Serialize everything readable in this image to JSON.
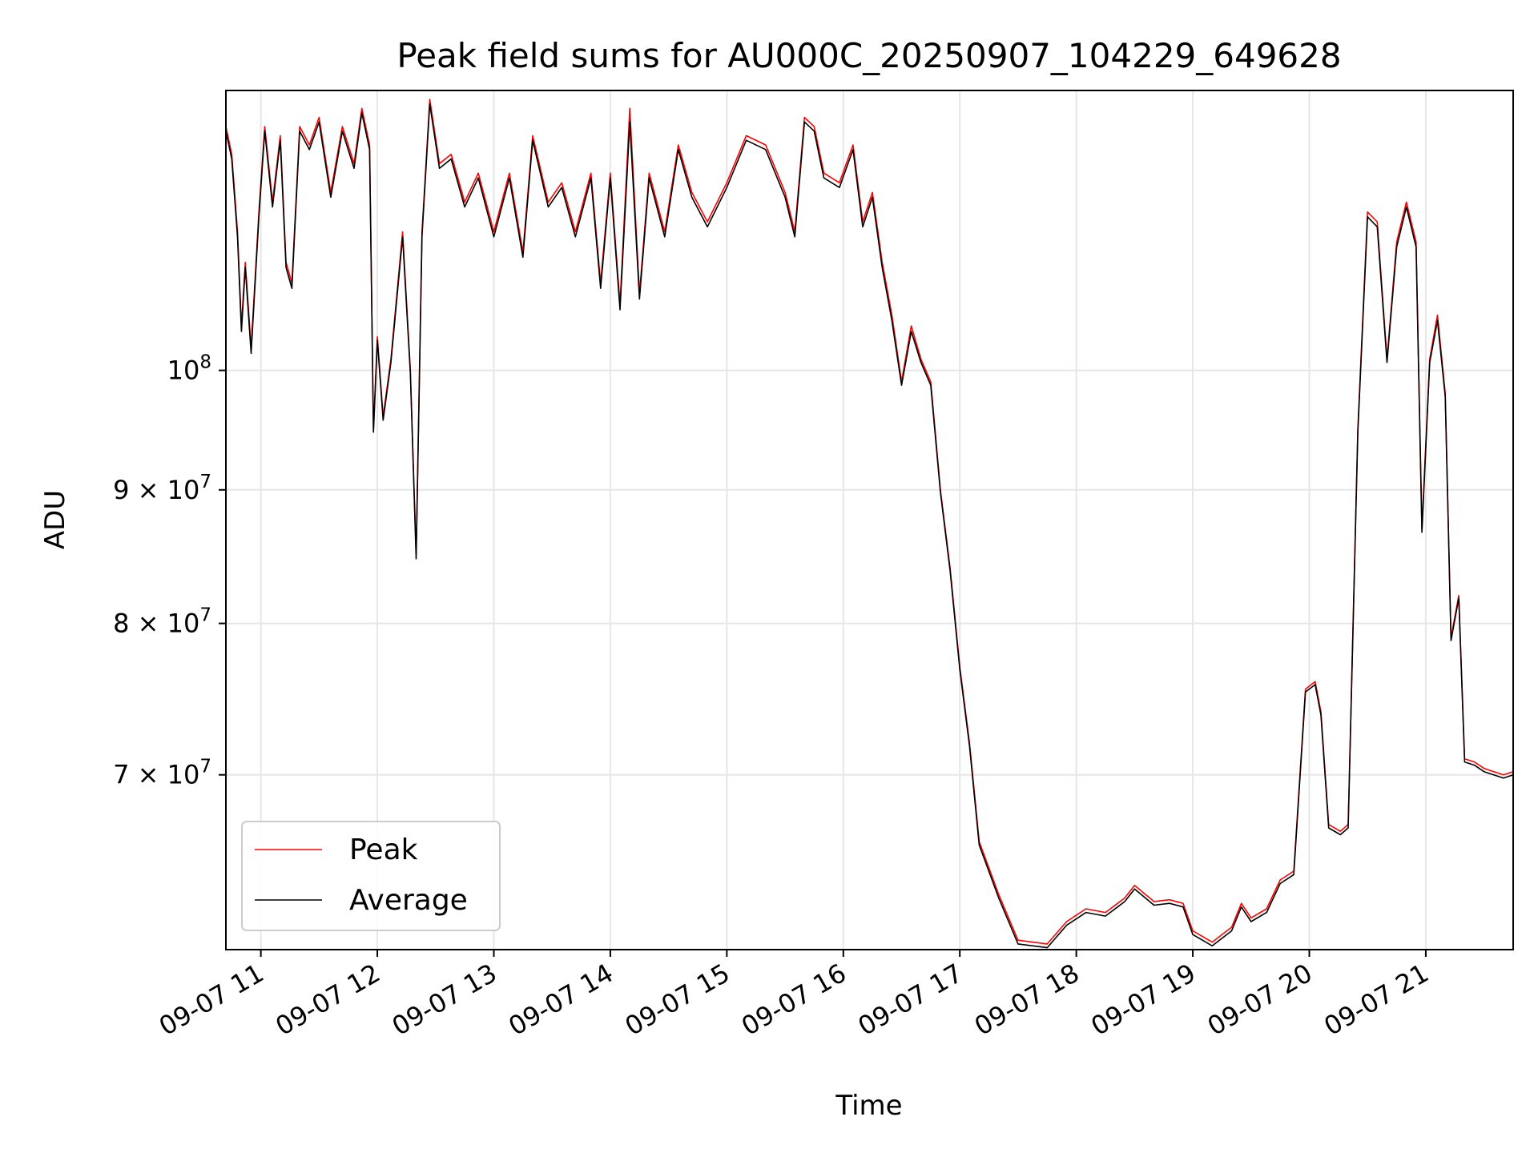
{
  "chart_data": {
    "type": "line",
    "title": "Peak field sums for AU000C_20250907_104229_649628",
    "xlabel": "Time",
    "ylabel": "ADU",
    "x_scale": "time",
    "y_scale": "log",
    "xlim": [
      "2025-09-07 10:42",
      "2025-09-07 21:45"
    ],
    "ylim": [
      60000000,
      128000000
    ],
    "grid": true,
    "legend_position": "lower-left",
    "x_ticks": [
      "09-07 11",
      "09-07 12",
      "09-07 13",
      "09-07 14",
      "09-07 15",
      "09-07 16",
      "09-07 17",
      "09-07 18",
      "09-07 19",
      "09-07 20",
      "09-07 21"
    ],
    "x_tick_hours": [
      11,
      12,
      13,
      14,
      15,
      16,
      17,
      18,
      19,
      20,
      21
    ],
    "y_ticks": [
      {
        "value": 100000000,
        "mantissa": "",
        "base": "10",
        "exp": "8"
      },
      {
        "value": 90000000,
        "mantissa": "9 × ",
        "base": "10",
        "exp": "7"
      },
      {
        "value": 80000000,
        "mantissa": "8 × ",
        "base": "10",
        "exp": "7"
      },
      {
        "value": 70000000,
        "mantissa": "7 × ",
        "base": "10",
        "exp": "7"
      }
    ],
    "series": [
      {
        "name": "Peak",
        "color": "#ff0000",
        "points": [
          [
            "10:42",
            124000000
          ],
          [
            "10:45",
            121000000
          ],
          [
            "10:48",
            113000000
          ],
          [
            "10:50",
            104000000
          ],
          [
            "10:52",
            110000000
          ],
          [
            "10:55",
            102000000
          ],
          [
            "10:59",
            115000000
          ],
          [
            "11:02",
            124000000
          ],
          [
            "11:06",
            116000000
          ],
          [
            "11:10",
            123000000
          ],
          [
            "11:13",
            110000000
          ],
          [
            "11:16",
            108000000
          ],
          [
            "11:20",
            124000000
          ],
          [
            "11:25",
            122000000
          ],
          [
            "11:30",
            125000000
          ],
          [
            "11:36",
            117000000
          ],
          [
            "11:42",
            124000000
          ],
          [
            "11:48",
            120000000
          ],
          [
            "11:52",
            126000000
          ],
          [
            "11:56",
            122000000
          ],
          [
            "11:58",
            95000000
          ],
          [
            "12:00",
            103000000
          ],
          [
            "12:03",
            96000000
          ],
          [
            "12:07",
            101000000
          ],
          [
            "12:13",
            113000000
          ],
          [
            "12:17",
            100000000
          ],
          [
            "12:20",
            85000000
          ],
          [
            "12:23",
            113000000
          ],
          [
            "12:27",
            127000000
          ],
          [
            "12:32",
            120000000
          ],
          [
            "12:38",
            121000000
          ],
          [
            "12:45",
            116000000
          ],
          [
            "12:52",
            119000000
          ],
          [
            "13:00",
            113000000
          ],
          [
            "13:08",
            119000000
          ],
          [
            "13:15",
            111000000
          ],
          [
            "13:20",
            123000000
          ],
          [
            "13:28",
            116000000
          ],
          [
            "13:35",
            118000000
          ],
          [
            "13:42",
            113000000
          ],
          [
            "13:50",
            119000000
          ],
          [
            "13:55",
            108000000
          ],
          [
            "14:00",
            119000000
          ],
          [
            "14:05",
            106000000
          ],
          [
            "14:10",
            126000000
          ],
          [
            "14:15",
            107000000
          ],
          [
            "14:20",
            119000000
          ],
          [
            "14:28",
            113000000
          ],
          [
            "14:35",
            122000000
          ],
          [
            "14:42",
            117000000
          ],
          [
            "14:50",
            114000000
          ],
          [
            "15:00",
            118000000
          ],
          [
            "15:10",
            123000000
          ],
          [
            "15:20",
            122000000
          ],
          [
            "15:30",
            117000000
          ],
          [
            "15:35",
            113000000
          ],
          [
            "15:40",
            125000000
          ],
          [
            "15:45",
            124000000
          ],
          [
            "15:50",
            119000000
          ],
          [
            "15:58",
            118000000
          ],
          [
            "16:05",
            122000000
          ],
          [
            "16:10",
            114000000
          ],
          [
            "16:15",
            117000000
          ],
          [
            "16:20",
            110000000
          ],
          [
            "16:25",
            105000000
          ],
          [
            "16:30",
            99000000
          ],
          [
            "16:35",
            104000000
          ],
          [
            "16:40",
            101000000
          ],
          [
            "16:45",
            99000000
          ],
          [
            "16:50",
            90000000
          ],
          [
            "16:55",
            84000000
          ],
          [
            "17:00",
            77000000
          ],
          [
            "17:05",
            72000000
          ],
          [
            "17:10",
            66000000
          ],
          [
            "17:20",
            63000000
          ],
          [
            "17:30",
            60500000
          ],
          [
            "17:45",
            60300000
          ],
          [
            "17:55",
            61500000
          ],
          [
            "18:05",
            62200000
          ],
          [
            "18:15",
            62000000
          ],
          [
            "18:25",
            62800000
          ],
          [
            "18:30",
            63500000
          ],
          [
            "18:40",
            62600000
          ],
          [
            "18:48",
            62700000
          ],
          [
            "18:55",
            62500000
          ],
          [
            "19:00",
            61000000
          ],
          [
            "19:10",
            60400000
          ],
          [
            "19:20",
            61200000
          ],
          [
            "19:25",
            62500000
          ],
          [
            "19:30",
            61700000
          ],
          [
            "19:38",
            62200000
          ],
          [
            "19:45",
            63800000
          ],
          [
            "19:52",
            64300000
          ],
          [
            "19:58",
            75500000
          ],
          [
            "20:03",
            76000000
          ],
          [
            "20:06",
            74000000
          ],
          [
            "20:10",
            67000000
          ],
          [
            "20:16",
            66600000
          ],
          [
            "20:20",
            67000000
          ],
          [
            "20:25",
            95000000
          ],
          [
            "20:30",
            115000000
          ],
          [
            "20:35",
            114000000
          ],
          [
            "20:40",
            101000000
          ],
          [
            "20:45",
            112000000
          ],
          [
            "20:50",
            116000000
          ],
          [
            "20:55",
            112000000
          ],
          [
            "20:58",
            87000000
          ],
          [
            "21:02",
            101000000
          ],
          [
            "21:06",
            105000000
          ],
          [
            "21:10",
            98000000
          ],
          [
            "21:13",
            79000000
          ],
          [
            "21:17",
            82000000
          ],
          [
            "21:20",
            71000000
          ],
          [
            "21:25",
            70800000
          ],
          [
            "21:30",
            70400000
          ],
          [
            "21:40",
            70000000
          ],
          [
            "21:45",
            70200000
          ]
        ]
      },
      {
        "name": "Average",
        "color": "#000000",
        "points": [
          [
            "10:42",
            123500000
          ],
          [
            "10:45",
            120500000
          ],
          [
            "10:48",
            112500000
          ],
          [
            "10:50",
            103500000
          ],
          [
            "10:52",
            109500000
          ],
          [
            "10:55",
            101500000
          ],
          [
            "10:59",
            114500000
          ],
          [
            "11:02",
            123500000
          ],
          [
            "11:06",
            115500000
          ],
          [
            "11:10",
            122500000
          ],
          [
            "11:13",
            109500000
          ],
          [
            "11:16",
            107500000
          ],
          [
            "11:20",
            123500000
          ],
          [
            "11:25",
            121500000
          ],
          [
            "11:30",
            124500000
          ],
          [
            "11:36",
            116500000
          ],
          [
            "11:42",
            123500000
          ],
          [
            "11:48",
            119500000
          ],
          [
            "11:52",
            125500000
          ],
          [
            "11:56",
            121500000
          ],
          [
            "11:58",
            94700000
          ],
          [
            "12:00",
            102700000
          ],
          [
            "12:03",
            95700000
          ],
          [
            "12:07",
            100700000
          ],
          [
            "12:13",
            112500000
          ],
          [
            "12:17",
            99700000
          ],
          [
            "12:20",
            84700000
          ],
          [
            "12:23",
            112500000
          ],
          [
            "12:27",
            126500000
          ],
          [
            "12:32",
            119500000
          ],
          [
            "12:38",
            120500000
          ],
          [
            "12:45",
            115500000
          ],
          [
            "12:52",
            118500000
          ],
          [
            "13:00",
            112500000
          ],
          [
            "13:08",
            118500000
          ],
          [
            "13:15",
            110500000
          ],
          [
            "13:20",
            122500000
          ],
          [
            "13:28",
            115500000
          ],
          [
            "13:35",
            117500000
          ],
          [
            "13:42",
            112500000
          ],
          [
            "13:50",
            118500000
          ],
          [
            "13:55",
            107500000
          ],
          [
            "14:00",
            118500000
          ],
          [
            "14:05",
            105500000
          ],
          [
            "14:10",
            124500000
          ],
          [
            "14:15",
            106500000
          ],
          [
            "14:20",
            118500000
          ],
          [
            "14:28",
            112500000
          ],
          [
            "14:35",
            121500000
          ],
          [
            "14:42",
            116500000
          ],
          [
            "14:50",
            113500000
          ],
          [
            "15:00",
            117500000
          ],
          [
            "15:10",
            122500000
          ],
          [
            "15:20",
            121500000
          ],
          [
            "15:30",
            116500000
          ],
          [
            "15:35",
            112500000
          ],
          [
            "15:40",
            124500000
          ],
          [
            "15:45",
            123500000
          ],
          [
            "15:50",
            118500000
          ],
          [
            "15:58",
            117500000
          ],
          [
            "16:05",
            121500000
          ],
          [
            "16:10",
            113500000
          ],
          [
            "16:15",
            116500000
          ],
          [
            "16:20",
            109500000
          ],
          [
            "16:25",
            104500000
          ],
          [
            "16:30",
            98700000
          ],
          [
            "16:35",
            103500000
          ],
          [
            "16:40",
            100700000
          ],
          [
            "16:45",
            98700000
          ],
          [
            "16:50",
            89800000
          ],
          [
            "16:55",
            83800000
          ],
          [
            "17:00",
            76800000
          ],
          [
            "17:05",
            71800000
          ],
          [
            "17:10",
            65800000
          ],
          [
            "17:20",
            62800000
          ],
          [
            "17:30",
            60300000
          ],
          [
            "17:45",
            60100000
          ],
          [
            "17:55",
            61300000
          ],
          [
            "18:05",
            62000000
          ],
          [
            "18:15",
            61800000
          ],
          [
            "18:25",
            62600000
          ],
          [
            "18:30",
            63300000
          ],
          [
            "18:40",
            62400000
          ],
          [
            "18:48",
            62500000
          ],
          [
            "18:55",
            62300000
          ],
          [
            "19:00",
            60800000
          ],
          [
            "19:10",
            60200000
          ],
          [
            "19:20",
            61000000
          ],
          [
            "19:25",
            62300000
          ],
          [
            "19:30",
            61500000
          ],
          [
            "19:38",
            62000000
          ],
          [
            "19:45",
            63600000
          ],
          [
            "19:52",
            64100000
          ],
          [
            "19:58",
            75300000
          ],
          [
            "20:03",
            75800000
          ],
          [
            "20:06",
            73800000
          ],
          [
            "20:10",
            66800000
          ],
          [
            "20:16",
            66400000
          ],
          [
            "20:20",
            66800000
          ],
          [
            "20:25",
            94700000
          ],
          [
            "20:30",
            114500000
          ],
          [
            "20:35",
            113500000
          ],
          [
            "20:40",
            100700000
          ],
          [
            "20:45",
            111500000
          ],
          [
            "20:50",
            115500000
          ],
          [
            "20:55",
            111500000
          ],
          [
            "20:58",
            86700000
          ],
          [
            "21:02",
            100700000
          ],
          [
            "21:06",
            104500000
          ],
          [
            "21:10",
            97700000
          ],
          [
            "21:13",
            78800000
          ],
          [
            "21:17",
            81800000
          ],
          [
            "21:20",
            70800000
          ],
          [
            "21:25",
            70600000
          ],
          [
            "21:30",
            70200000
          ],
          [
            "21:40",
            69800000
          ],
          [
            "21:45",
            70000000
          ]
        ]
      }
    ]
  }
}
